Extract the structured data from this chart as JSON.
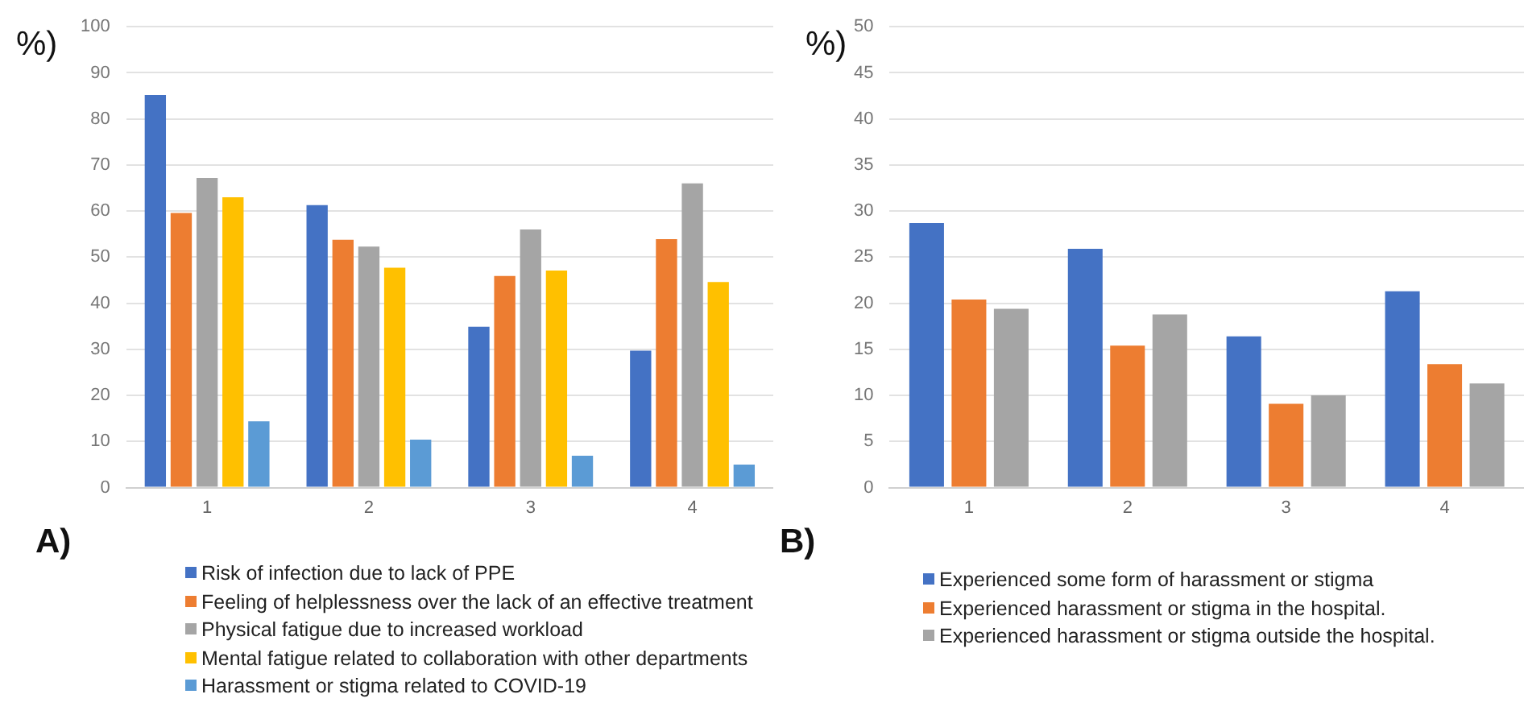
{
  "chart_data": [
    {
      "type": "bar",
      "ylabel": "%)",
      "annotations": [
        "A)"
      ],
      "categories": [
        "1",
        "2",
        "3",
        "4"
      ],
      "ylim": [
        0,
        100
      ],
      "yticks": [
        0,
        10,
        20,
        30,
        40,
        50,
        60,
        70,
        80,
        90,
        100
      ],
      "grid": "y",
      "legend": "bottom",
      "series": [
        {
          "name": "Risk of infection due to lack of PPE",
          "color": "#4472c4",
          "values": [
            85.2,
            61.3,
            34.9,
            29.7
          ]
        },
        {
          "name": "Feeling of helplessness over the lack of an effective treatment",
          "color": "#ed7d31",
          "values": [
            59.6,
            53.8,
            45.9,
            53.9
          ]
        },
        {
          "name": "Physical fatigue due to increased workload",
          "color": "#a5a5a5",
          "values": [
            67.2,
            52.3,
            56.0,
            66.0
          ]
        },
        {
          "name": "Mental fatigue related to collaboration with other departments",
          "color": "#ffc000",
          "values": [
            63.0,
            47.7,
            47.1,
            44.6
          ]
        },
        {
          "name": "Harassment or stigma related to COVID-19",
          "color": "#5b9bd5",
          "values": [
            14.4,
            10.4,
            6.9,
            5.0
          ]
        }
      ]
    },
    {
      "type": "bar",
      "ylabel": "%)",
      "annotations": [
        "B)"
      ],
      "categories": [
        "1",
        "2",
        "3",
        "4"
      ],
      "ylim": [
        0,
        50
      ],
      "yticks": [
        0,
        5,
        10,
        15,
        20,
        25,
        30,
        35,
        40,
        45,
        50
      ],
      "grid": "y",
      "legend": "bottom",
      "series": [
        {
          "name": "Experienced some form of harassment or stigma",
          "color": "#4472c4",
          "values": [
            28.7,
            25.9,
            16.4,
            21.3
          ]
        },
        {
          "name": "Experienced harassment or stigma in the hospital.",
          "color": "#ed7d31",
          "values": [
            20.4,
            15.4,
            9.1,
            13.4
          ]
        },
        {
          "name": "Experienced harassment or stigma outside the hospital.",
          "color": "#a5a5a5",
          "values": [
            19.4,
            18.8,
            10.0,
            11.3
          ]
        }
      ]
    }
  ]
}
